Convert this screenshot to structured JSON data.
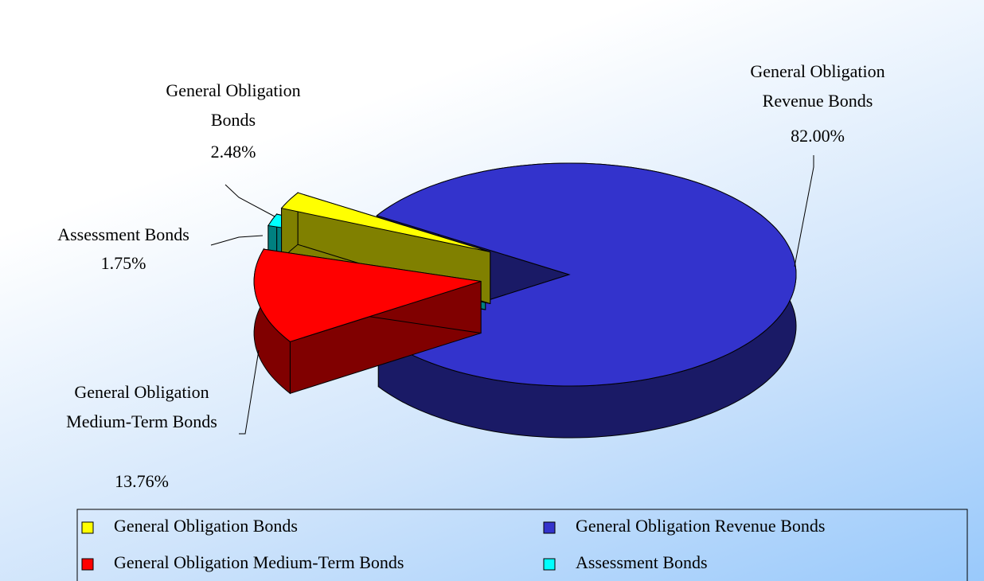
{
  "chart_data": {
    "type": "pie",
    "categories": [
      "General Obligation Bonds",
      "General Obligation Revenue Bonds",
      "General Obligation Medium-Term Bonds",
      "Assessment Bonds"
    ],
    "values": [
      2.48,
      82.0,
      13.76,
      1.75
    ],
    "value_labels": [
      "2.48%",
      "82.00%",
      "13.76%",
      "1.75%"
    ],
    "colors": [
      "#ffff00",
      "#3333cc",
      "#ff0000",
      "#00ffff"
    ],
    "legend": "bottom"
  }
}
